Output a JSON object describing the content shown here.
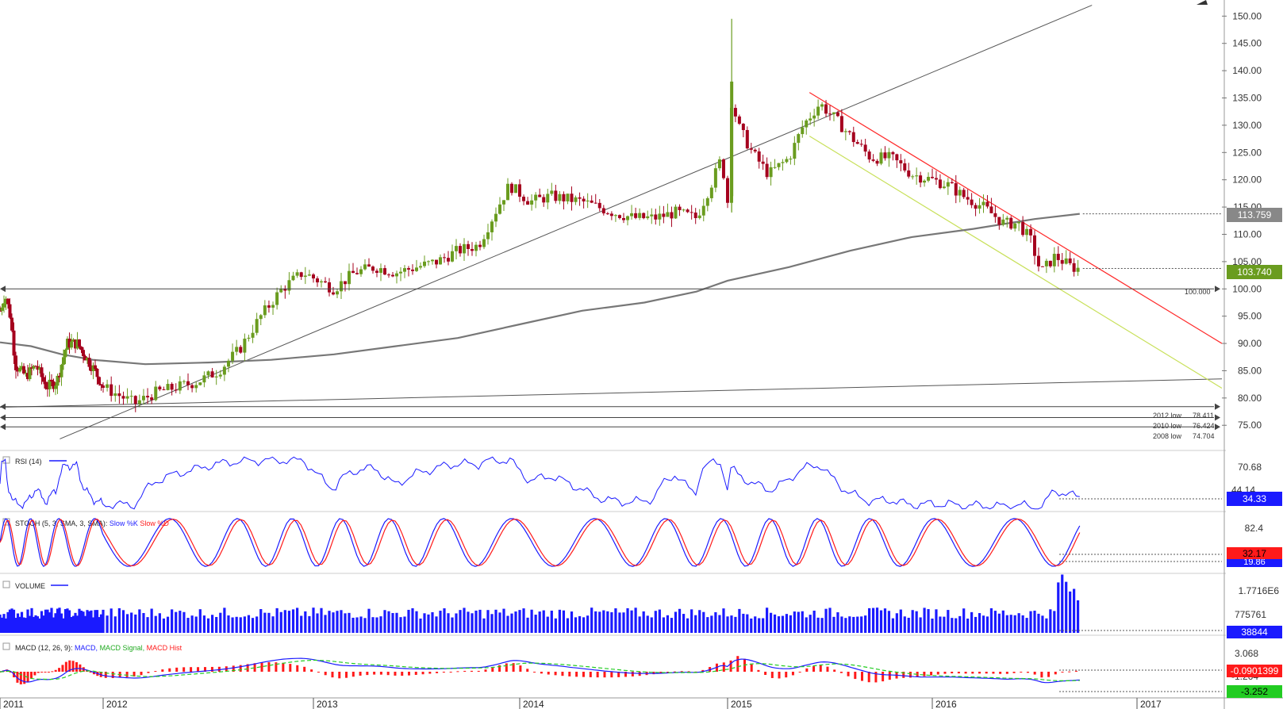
{
  "colors": {
    "up": "#6a9c1f",
    "down": "#a5001e",
    "sma": "#777777",
    "trend": "#555555",
    "red_channel": "#ff2a2a",
    "yellow_channel": "#c8e05a",
    "blue": "#1a1aff",
    "red": "#ff1a1a",
    "green": "#22cc22"
  },
  "x_axis": {
    "labels": [
      "2011",
      "2012",
      "2013",
      "2014",
      "2015",
      "2016",
      "2017"
    ]
  },
  "price_panel": {
    "y_ticks": [
      "150.00",
      "145.00",
      "140.00",
      "135.00",
      "130.00",
      "125.00",
      "120.00",
      "115.00",
      "110.00",
      "105.00",
      "100.00",
      "95.00",
      "90.00",
      "85.00",
      "80.00",
      "75.00"
    ],
    "y_range": [
      73.0,
      151.5
    ],
    "current_price_tag": "103.740",
    "sma_tag": "113.759",
    "level_100_label": "100.000",
    "lows": [
      {
        "label": "2012 low",
        "value_text": "78.411",
        "value": 78.411
      },
      {
        "label": "2010 low",
        "value_text": "76.424",
        "value": 76.424
      },
      {
        "label": "2008 low",
        "value_text": "74.704",
        "value": 74.704
      }
    ]
  },
  "rsi_panel": {
    "title": "RSI (14)",
    "ticks": [
      "70.68",
      "44.14"
    ],
    "value_tag": "34.33"
  },
  "stoch_panel": {
    "title_prefix": "STOCH (5, 3, SMA, 3, SMA):",
    "slow_k": "Slow %K",
    "slow_d": "Slow %D",
    "ticks": [
      "82.4"
    ],
    "tag_d": "32.17",
    "tag_k": "19.86"
  },
  "volume_panel": {
    "title": "VOLUME",
    "ticks": [
      "1.7716E6",
      "775761"
    ],
    "value_tag": "38844"
  },
  "macd_panel": {
    "title_prefix": "MACD (12, 26, 9):",
    "macd_label": "MACD,",
    "signal_label": "MACD Signal,",
    "hist_label": "MACD Hist",
    "ticks": [
      "3.068",
      "-1.264"
    ],
    "tag_hist": "-0.0901399",
    "tag_value": "-3.252"
  },
  "chart_data": {
    "type": "candlestick",
    "x_label_years": [
      "2011",
      "2012",
      "2013",
      "2014",
      "2015",
      "2016",
      "2017"
    ],
    "y_range": [
      73.0,
      151.5
    ],
    "price_path": [
      [
        2011.0,
        96
      ],
      [
        2011.05,
        99
      ],
      [
        2011.1,
        95
      ],
      [
        2011.15,
        86
      ],
      [
        2011.25,
        84
      ],
      [
        2011.35,
        86
      ],
      [
        2011.45,
        82
      ],
      [
        2011.55,
        83
      ],
      [
        2011.65,
        90
      ],
      [
        2011.75,
        90
      ],
      [
        2011.85,
        87
      ],
      [
        2011.92,
        85
      ],
      [
        2012.0,
        82
      ],
      [
        2012.1,
        80
      ],
      [
        2012.15,
        79
      ],
      [
        2012.25,
        81
      ],
      [
        2012.35,
        82
      ],
      [
        2012.45,
        83
      ],
      [
        2012.55,
        85
      ],
      [
        2012.65,
        89
      ],
      [
        2012.75,
        95
      ],
      [
        2012.85,
        100
      ],
      [
        2012.95,
        103
      ],
      [
        2013.1,
        100
      ],
      [
        2013.2,
        103
      ],
      [
        2013.3,
        104
      ],
      [
        2013.4,
        103
      ],
      [
        2013.5,
        104
      ],
      [
        2013.6,
        105
      ],
      [
        2013.7,
        107
      ],
      [
        2013.8,
        108
      ],
      [
        2013.88,
        114
      ],
      [
        2013.95,
        119
      ],
      [
        2014.05,
        116
      ],
      [
        2014.15,
        117
      ],
      [
        2014.3,
        116
      ],
      [
        2014.45,
        114
      ],
      [
        2014.55,
        113
      ],
      [
        2014.65,
        113
      ],
      [
        2014.75,
        114
      ],
      [
        2014.85,
        113
      ],
      [
        2014.93,
        120
      ],
      [
        2014.97,
        124
      ],
      [
        2015.0,
        116
      ],
      [
        2015.02,
        135
      ],
      [
        2015.05,
        130
      ],
      [
        2015.12,
        125
      ],
      [
        2015.2,
        121
      ],
      [
        2015.3,
        124
      ],
      [
        2015.37,
        130
      ],
      [
        2015.45,
        134
      ],
      [
        2015.53,
        131
      ],
      [
        2015.6,
        128
      ],
      [
        2015.7,
        124
      ],
      [
        2015.8,
        124
      ],
      [
        2015.9,
        121
      ],
      [
        2016.0,
        120
      ],
      [
        2016.08,
        119
      ],
      [
        2016.15,
        117
      ],
      [
        2016.25,
        115
      ],
      [
        2016.35,
        112
      ],
      [
        2016.42,
        112
      ],
      [
        2016.48,
        109
      ],
      [
        2016.53,
        103
      ],
      [
        2016.6,
        106
      ],
      [
        2016.68,
        104
      ],
      [
        2016.72,
        103.7
      ]
    ],
    "sma_200": [
      [
        2011.0,
        90.2
      ],
      [
        2011.3,
        89.5
      ],
      [
        2011.6,
        88
      ],
      [
        2011.9,
        87
      ],
      [
        2012.2,
        86.2
      ],
      [
        2012.5,
        86.5
      ],
      [
        2012.8,
        87
      ],
      [
        2013.1,
        88
      ],
      [
        2013.4,
        89.5
      ],
      [
        2013.7,
        91
      ],
      [
        2014.0,
        93.5
      ],
      [
        2014.3,
        96
      ],
      [
        2014.6,
        97.5
      ],
      [
        2014.85,
        99.5
      ],
      [
        2015.0,
        101.5
      ],
      [
        2015.3,
        104
      ],
      [
        2015.6,
        107
      ],
      [
        2015.9,
        109.5
      ],
      [
        2016.2,
        111
      ],
      [
        2016.5,
        112.8
      ],
      [
        2016.72,
        113.759
      ]
    ],
    "current_price": 103.74,
    "sma_value": 113.759,
    "horizontal_levels": [
      {
        "label": "100.000",
        "value": 100.0
      },
      {
        "label": "2012 low",
        "value": 78.411
      },
      {
        "label": "2010 low",
        "value": 76.424
      },
      {
        "label": "2008 low",
        "value": 74.704
      }
    ],
    "indicators": {
      "rsi": {
        "period": 14,
        "last": 34.33
      },
      "stoch": {
        "params": "5, 3, SMA, 3, SMA",
        "slow_d_last": 32.17,
        "slow_k_last": 19.86
      },
      "volume": {
        "last": 38844
      },
      "macd": {
        "params": "12, 26, 9",
        "hist_last": -0.0901399,
        "macd_last": -3.252
      }
    }
  }
}
